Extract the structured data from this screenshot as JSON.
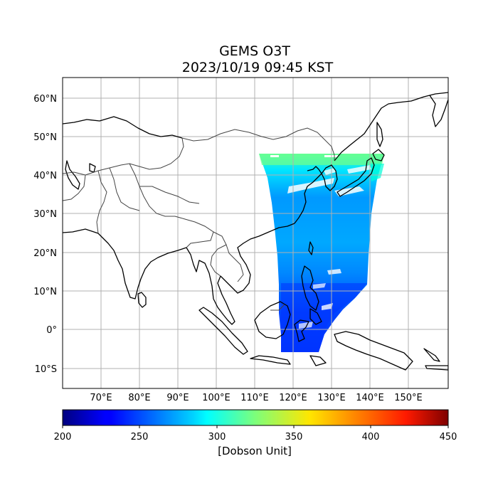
{
  "title_line1": "GEMS O3T",
  "title_line2": "2023/10/19 09:45 KST",
  "lat_labels": [
    "60°N",
    "50°N",
    "40°N",
    "30°N",
    "20°N",
    "10°N",
    "0°",
    "10°S"
  ],
  "lon_labels": [
    "70°E",
    "80°E",
    "90°E",
    "100°E",
    "110°E",
    "120°E",
    "130°E",
    "140°E",
    "150°E"
  ],
  "colorbar": {
    "label": "[Dobson Unit]",
    "ticks": [
      "200",
      "250",
      "300",
      "350",
      "400",
      "450"
    ],
    "colormap": "jet",
    "range": [
      200,
      450
    ]
  },
  "map": {
    "lon_range": [
      60,
      160
    ],
    "lat_range": [
      -15,
      66
    ],
    "grid": true,
    "coverage_lon_range": [
      111,
      143
    ],
    "coverage_lat_range": [
      -6,
      46
    ]
  }
}
